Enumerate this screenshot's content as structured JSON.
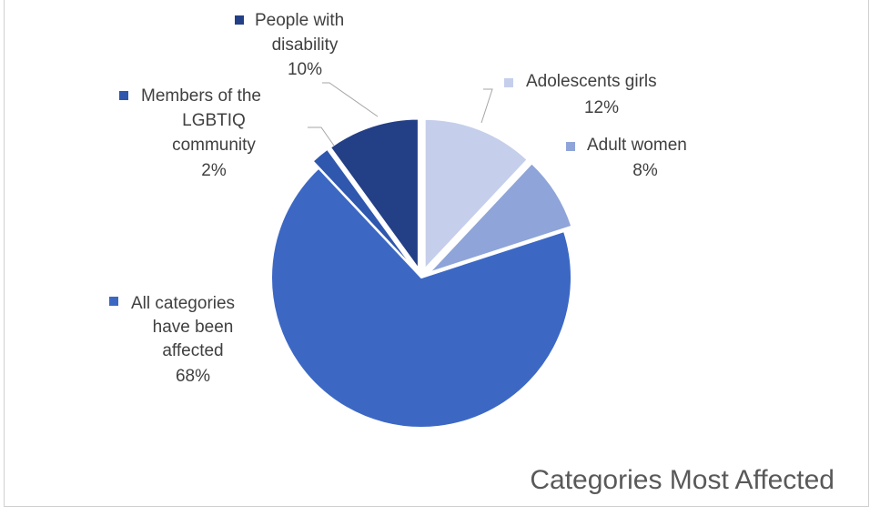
{
  "chart_data": {
    "type": "pie",
    "title": "Categories Most Affected",
    "exploded": true,
    "start_angle_deg": 0,
    "direction": "clockwise",
    "slices": [
      {
        "label_lines": [
          "Adolescents girls"
        ],
        "value": 12,
        "value_label": "12%",
        "color": "#c5cfeb"
      },
      {
        "label_lines": [
          "Adult women"
        ],
        "value": 8,
        "value_label": "8%",
        "color": "#8fa4d8"
      },
      {
        "label_lines": [
          "All categories",
          "have been",
          "affected"
        ],
        "value": 68,
        "value_label": "68%",
        "color": "#3c68c4"
      },
      {
        "label_lines": [
          "Members of the",
          "LGBTIQ",
          "community"
        ],
        "value": 2,
        "value_label": "2%",
        "color": "#2f57ae"
      },
      {
        "label_lines": [
          "People with",
          "disability"
        ],
        "value": 10,
        "value_label": "10%",
        "color": "#233f86"
      }
    ]
  }
}
